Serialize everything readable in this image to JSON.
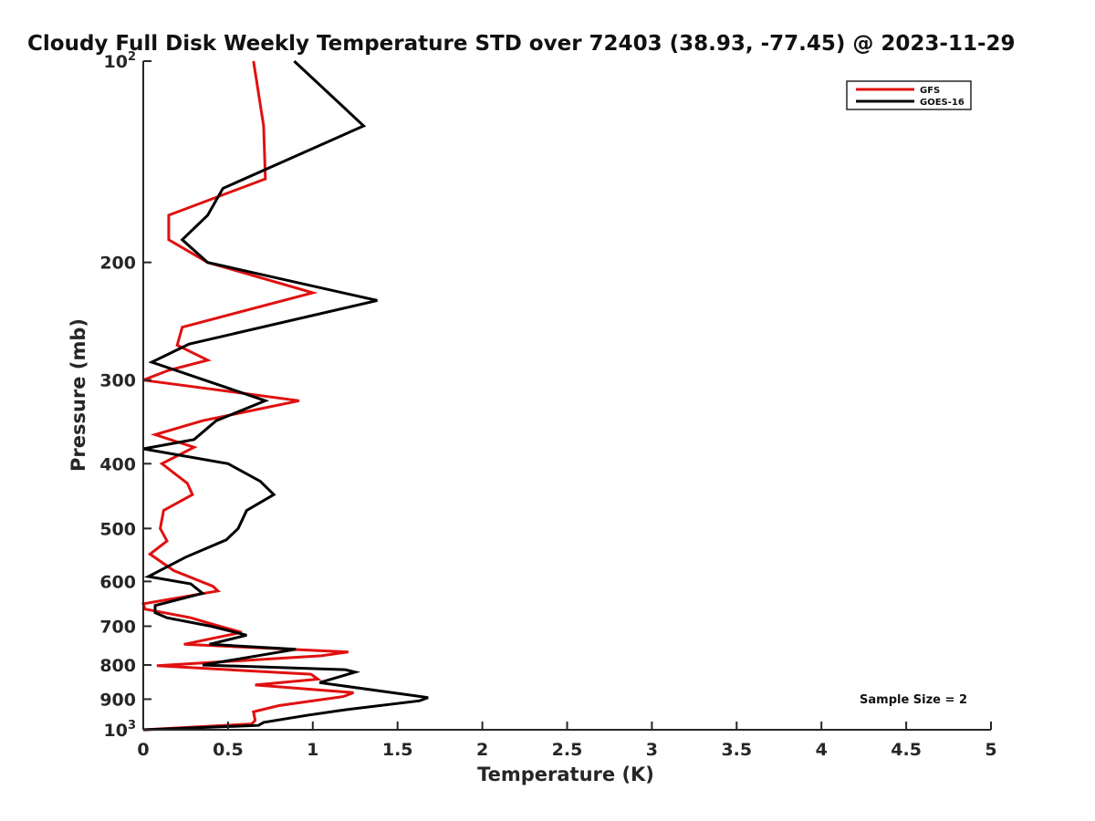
{
  "chart_data": {
    "type": "line",
    "title": "Cloudy Full Disk Weekly Temperature STD over 72403 (38.93, -77.45) @ 2023-11-29",
    "xlabel": "Temperature (K)",
    "ylabel": "Pressure (mb)",
    "xlim": [
      0,
      5
    ],
    "ylim": [
      100,
      1000
    ],
    "yscale": "log",
    "yreversed": true,
    "grid": false,
    "legend_position": "top-right",
    "x_ticks": [
      "0",
      "0.5",
      "1",
      "1.5",
      "2",
      "2.5",
      "3",
      "3.5",
      "4",
      "4.5",
      "5"
    ],
    "y_ticks": [
      {
        "value": 100,
        "base": "10",
        "exp": "2"
      },
      {
        "value": 200,
        "label": "200"
      },
      {
        "value": 300,
        "label": "300"
      },
      {
        "value": 400,
        "label": "400"
      },
      {
        "value": 500,
        "label": "500"
      },
      {
        "value": 600,
        "label": "600"
      },
      {
        "value": 700,
        "label": "700"
      },
      {
        "value": 800,
        "label": "800"
      },
      {
        "value": 900,
        "label": "900"
      },
      {
        "value": 1000,
        "base": "10",
        "exp": "3"
      }
    ],
    "annotation": "Sample Size = 2",
    "series": [
      {
        "name": "GFS",
        "color": "#e01010",
        "points": [
          [
            0.65,
            100
          ],
          [
            0.71,
            125
          ],
          [
            0.72,
            150
          ],
          [
            0.15,
            170
          ],
          [
            0.15,
            185
          ],
          [
            0.38,
            200
          ],
          [
            1.0,
            222
          ],
          [
            0.23,
            250
          ],
          [
            0.2,
            266
          ],
          [
            0.38,
            280
          ],
          [
            0.15,
            290
          ],
          [
            0.0,
            300
          ],
          [
            0.92,
            322
          ],
          [
            0.35,
            345
          ],
          [
            0.07,
            362
          ],
          [
            0.3,
            378
          ],
          [
            0.11,
            400
          ],
          [
            0.26,
            428
          ],
          [
            0.29,
            445
          ],
          [
            0.12,
            470
          ],
          [
            0.1,
            500
          ],
          [
            0.14,
            522
          ],
          [
            0.04,
            546
          ],
          [
            0.18,
            578
          ],
          [
            0.41,
            610
          ],
          [
            0.44,
            620
          ],
          [
            0.0,
            648
          ],
          [
            0.01,
            660
          ],
          [
            0.28,
            680
          ],
          [
            0.45,
            700
          ],
          [
            0.58,
            715
          ],
          [
            0.24,
            745
          ],
          [
            1.21,
            765
          ],
          [
            1.05,
            775
          ],
          [
            0.08,
            802
          ],
          [
            0.99,
            826
          ],
          [
            1.03,
            840
          ],
          [
            0.66,
            857
          ],
          [
            1.24,
            880
          ],
          [
            1.18,
            892
          ],
          [
            0.8,
            920
          ],
          [
            0.65,
            940
          ],
          [
            0.66,
            968
          ],
          [
            0.64,
            980
          ],
          [
            0.0,
            1000
          ]
        ]
      },
      {
        "name": "GOES-16",
        "color": "#000000",
        "points": [
          [
            0.89,
            100
          ],
          [
            1.3,
            125
          ],
          [
            0.47,
            155
          ],
          [
            0.38,
            170
          ],
          [
            0.23,
            185
          ],
          [
            0.38,
            200
          ],
          [
            1.38,
            228
          ],
          [
            0.27,
            265
          ],
          [
            0.05,
            282
          ],
          [
            0.72,
            322
          ],
          [
            0.43,
            345
          ],
          [
            0.3,
            368
          ],
          [
            0.0,
            380
          ],
          [
            0.5,
            400
          ],
          [
            0.69,
            425
          ],
          [
            0.77,
            445
          ],
          [
            0.61,
            470
          ],
          [
            0.56,
            500
          ],
          [
            0.49,
            520
          ],
          [
            0.25,
            552
          ],
          [
            0.03,
            590
          ],
          [
            0.28,
            605
          ],
          [
            0.35,
            625
          ],
          [
            0.07,
            652
          ],
          [
            0.07,
            668
          ],
          [
            0.14,
            680
          ],
          [
            0.4,
            700
          ],
          [
            0.61,
            722
          ],
          [
            0.39,
            745
          ],
          [
            0.9,
            758
          ],
          [
            0.35,
            800
          ],
          [
            1.19,
            813
          ],
          [
            1.25,
            820
          ],
          [
            1.04,
            850
          ],
          [
            1.68,
            895
          ],
          [
            1.63,
            905
          ],
          [
            1.17,
            935
          ],
          [
            0.96,
            952
          ],
          [
            0.71,
            975
          ],
          [
            0.68,
            985
          ],
          [
            0.0,
            1000
          ]
        ]
      }
    ]
  }
}
